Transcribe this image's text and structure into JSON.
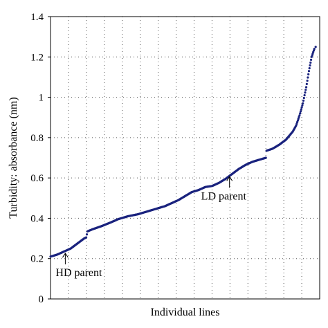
{
  "chart_data": {
    "type": "scatter",
    "title": "",
    "xlabel": "Individual lines",
    "ylabel": "Turbidity: absorbance (nm)",
    "ylim": [
      0,
      1.4
    ],
    "yticks": [
      "0",
      "0.2",
      "0.4",
      "0.6",
      "0.8",
      "1",
      "1.2",
      "1.4"
    ],
    "xlim": [
      0,
      400
    ],
    "grid": true,
    "legend": "none",
    "marker_color": "#1a237e",
    "series": [
      {
        "curve_points": [
          [
            0,
            0.21
          ],
          [
            5,
            0.215
          ],
          [
            10,
            0.22
          ],
          [
            20,
            0.235
          ],
          [
            30,
            0.25
          ],
          [
            40,
            0.275
          ],
          [
            50,
            0.3
          ],
          [
            53,
            0.305
          ],
          [
            55,
            0.335
          ],
          [
            62,
            0.345
          ],
          [
            75,
            0.36
          ],
          [
            90,
            0.38
          ],
          [
            100,
            0.395
          ],
          [
            115,
            0.41
          ],
          [
            130,
            0.42
          ],
          [
            145,
            0.435
          ],
          [
            160,
            0.45
          ],
          [
            170,
            0.46
          ],
          [
            180,
            0.475
          ],
          [
            190,
            0.49
          ],
          [
            200,
            0.51
          ],
          [
            210,
            0.53
          ],
          [
            220,
            0.54
          ],
          [
            230,
            0.555
          ],
          [
            240,
            0.56
          ],
          [
            250,
            0.575
          ],
          [
            260,
            0.595
          ],
          [
            270,
            0.62
          ],
          [
            280,
            0.645
          ],
          [
            290,
            0.665
          ],
          [
            300,
            0.68
          ],
          [
            310,
            0.69
          ],
          [
            320,
            0.7
          ],
          [
            321,
            0.735
          ],
          [
            330,
            0.745
          ],
          [
            340,
            0.765
          ],
          [
            350,
            0.79
          ],
          [
            360,
            0.83
          ],
          [
            365,
            0.86
          ],
          [
            370,
            0.91
          ],
          [
            375,
            0.97
          ],
          [
            380,
            1.05
          ],
          [
            384,
            1.13
          ],
          [
            388,
            1.2
          ],
          [
            392,
            1.24
          ]
        ]
      }
    ],
    "annotations": [
      {
        "text": "HD parent",
        "x": 22,
        "y": 0.24
      },
      {
        "text": "LD parent",
        "x": 266,
        "y": 0.62
      }
    ]
  }
}
